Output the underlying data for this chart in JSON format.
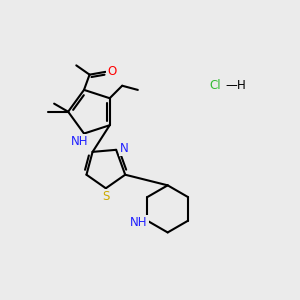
{
  "background_color": "#EBEBEB",
  "bond_color": "#000000",
  "n_color": "#2020FF",
  "o_color": "#FF0000",
  "s_color": "#CCAA00",
  "cl_color": "#33BB33",
  "figsize": [
    3.0,
    3.0
  ],
  "dpi": 100,
  "xlim": [
    0,
    10
  ],
  "ylim": [
    0,
    10
  ]
}
